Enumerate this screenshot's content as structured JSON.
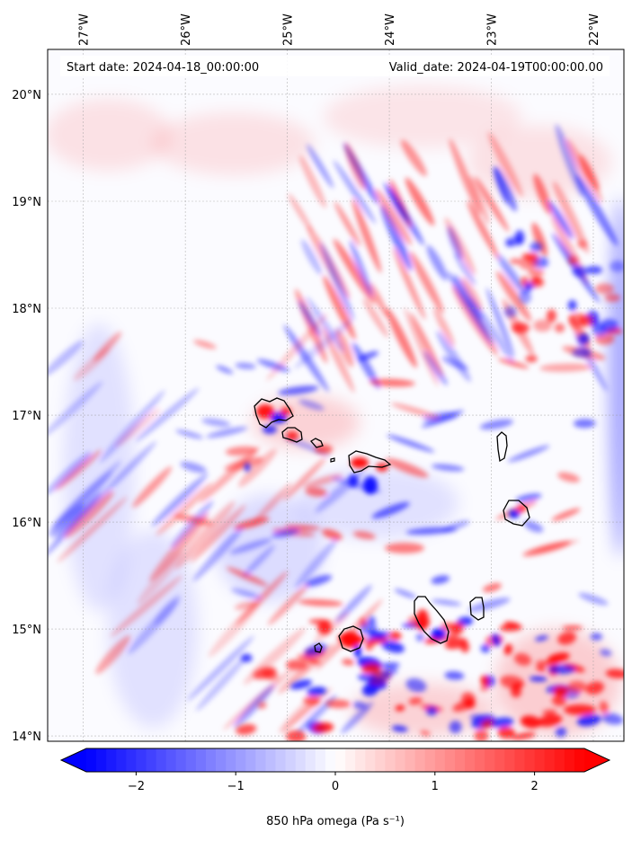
{
  "header": {
    "start_date": "Start date: 2024-04-18_00:00:00",
    "valid_date": "Valid_date: 2024-04-19T00:00:00.00"
  },
  "map": {
    "lon_range": [
      -27.35,
      -21.7
    ],
    "lat_range": [
      13.95,
      20.42
    ],
    "lon_ticks": [
      -27,
      -26,
      -25,
      -24,
      -23,
      -22
    ],
    "lon_tick_labels": [
      "27°W",
      "26°W",
      "25°W",
      "24°W",
      "23°W",
      "22°W"
    ],
    "lat_ticks": [
      14,
      15,
      16,
      17,
      18,
      19,
      20
    ],
    "lat_tick_labels": [
      "14°N",
      "15°N",
      "16°N",
      "17°N",
      "18°N",
      "19°N",
      "20°N"
    ],
    "gridlines": true,
    "islands": [
      "Santo Antão",
      "São Vicente",
      "Santa Luzia",
      "São Nicolau",
      "Sal",
      "Boa Vista",
      "Maio",
      "Santiago",
      "Fogo",
      "Brava"
    ]
  },
  "colorbar": {
    "label": "850 hPa omega (Pa s⁻¹)",
    "range": [
      -2.5,
      2.5
    ],
    "ticks": [
      -2,
      -1,
      0,
      1,
      2
    ],
    "tick_labels": [
      "−2",
      "−1",
      "0",
      "1",
      "2"
    ],
    "colormap": "bwr",
    "extend": "both"
  },
  "colors": {
    "negative": "#0000ff",
    "neutral": "#ffffff",
    "positive": "#ff0000",
    "coastline": "#000000"
  }
}
